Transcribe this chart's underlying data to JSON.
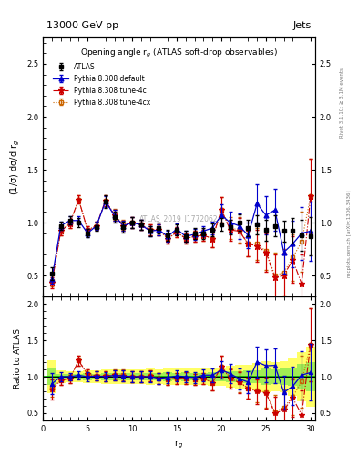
{
  "title_top": "13000 GeV pp",
  "title_right": "Jets",
  "plot_title": "Opening angle r$_g$ (ATLAS soft-drop observables)",
  "xlabel": "r$_g$",
  "ylabel_main": "(1/σ) dσ/d r$_g$",
  "ylabel_ratio": "Ratio to ATLAS",
  "watermark": "ATLAS_2019_I1772062",
  "rivet_label": "Rivet 3.1.10; ≥ 3.1M events",
  "arxiv_label": "mcplots.cern.ch [arXiv:1306.3436]",
  "x": [
    1,
    2,
    3,
    4,
    5,
    6,
    7,
    8,
    9,
    10,
    11,
    12,
    13,
    14,
    15,
    16,
    17,
    18,
    19,
    20,
    21,
    22,
    23,
    24,
    25,
    26,
    27,
    28,
    29,
    30
  ],
  "atlas_y": [
    0.52,
    0.97,
    1.02,
    1.0,
    0.9,
    0.96,
    1.2,
    1.05,
    0.96,
    1.0,
    0.98,
    0.92,
    0.95,
    0.88,
    0.93,
    0.87,
    0.9,
    0.9,
    0.93,
    0.98,
    0.96,
    1.0,
    0.95,
    0.98,
    0.93,
    0.97,
    0.92,
    0.92,
    0.88,
    0.87
  ],
  "atlas_yerr": [
    0.06,
    0.04,
    0.04,
    0.04,
    0.04,
    0.04,
    0.06,
    0.05,
    0.05,
    0.05,
    0.05,
    0.05,
    0.05,
    0.05,
    0.05,
    0.05,
    0.05,
    0.05,
    0.06,
    0.06,
    0.07,
    0.08,
    0.08,
    0.09,
    0.1,
    0.1,
    0.1,
    0.12,
    0.15,
    0.18
  ],
  "py_default_y": [
    0.47,
    0.97,
    1.02,
    1.02,
    0.9,
    0.97,
    1.2,
    1.07,
    0.97,
    1.0,
    0.98,
    0.92,
    0.93,
    0.87,
    0.94,
    0.87,
    0.89,
    0.92,
    0.95,
    1.07,
    1.0,
    0.97,
    0.88,
    1.18,
    1.07,
    1.12,
    0.72,
    0.8,
    0.9,
    0.92
  ],
  "py_default_yerr": [
    0.05,
    0.04,
    0.04,
    0.04,
    0.04,
    0.04,
    0.05,
    0.05,
    0.05,
    0.05,
    0.05,
    0.05,
    0.05,
    0.05,
    0.05,
    0.05,
    0.05,
    0.05,
    0.06,
    0.1,
    0.1,
    0.12,
    0.12,
    0.18,
    0.18,
    0.2,
    0.2,
    0.22,
    0.25,
    0.28
  ],
  "py_4c_y": [
    0.43,
    0.92,
    0.99,
    1.22,
    0.93,
    0.97,
    1.21,
    1.07,
    0.97,
    1.0,
    0.98,
    0.93,
    0.93,
    0.85,
    0.91,
    0.85,
    0.87,
    0.88,
    0.85,
    1.12,
    0.93,
    0.92,
    0.8,
    0.78,
    0.72,
    0.48,
    0.5,
    0.65,
    0.42,
    1.25
  ],
  "py_4c_yerr": [
    0.05,
    0.04,
    0.04,
    0.04,
    0.04,
    0.04,
    0.05,
    0.05,
    0.05,
    0.05,
    0.05,
    0.05,
    0.05,
    0.05,
    0.05,
    0.05,
    0.05,
    0.05,
    0.08,
    0.12,
    0.1,
    0.12,
    0.12,
    0.15,
    0.18,
    0.22,
    0.22,
    0.22,
    0.28,
    0.35
  ],
  "py_4cx_y": [
    0.45,
    0.92,
    0.99,
    1.22,
    0.93,
    0.97,
    1.21,
    1.08,
    0.98,
    1.0,
    0.98,
    0.93,
    0.93,
    0.85,
    0.91,
    0.85,
    0.87,
    0.88,
    0.85,
    1.12,
    0.95,
    0.93,
    0.8,
    0.8,
    0.73,
    0.5,
    0.53,
    0.67,
    0.82,
    1.25
  ],
  "py_4cx_yerr": [
    0.05,
    0.04,
    0.04,
    0.04,
    0.04,
    0.04,
    0.05,
    0.05,
    0.05,
    0.05,
    0.05,
    0.05,
    0.05,
    0.05,
    0.05,
    0.05,
    0.05,
    0.05,
    0.08,
    0.12,
    0.1,
    0.12,
    0.12,
    0.15,
    0.18,
    0.22,
    0.22,
    0.22,
    0.28,
    0.35
  ],
  "color_atlas": "#000000",
  "color_default": "#0000cc",
  "color_4c": "#cc0000",
  "color_4cx": "#cc6600",
  "ylim_main": [
    0.3,
    2.75
  ],
  "ylim_ratio": [
    0.4,
    2.1
  ],
  "xlim": [
    0,
    30.5
  ],
  "yticks_main": [
    0.5,
    1.0,
    1.5,
    2.0,
    2.5
  ],
  "yticks_ratio": [
    0.5,
    1.0,
    1.5,
    2.0
  ]
}
